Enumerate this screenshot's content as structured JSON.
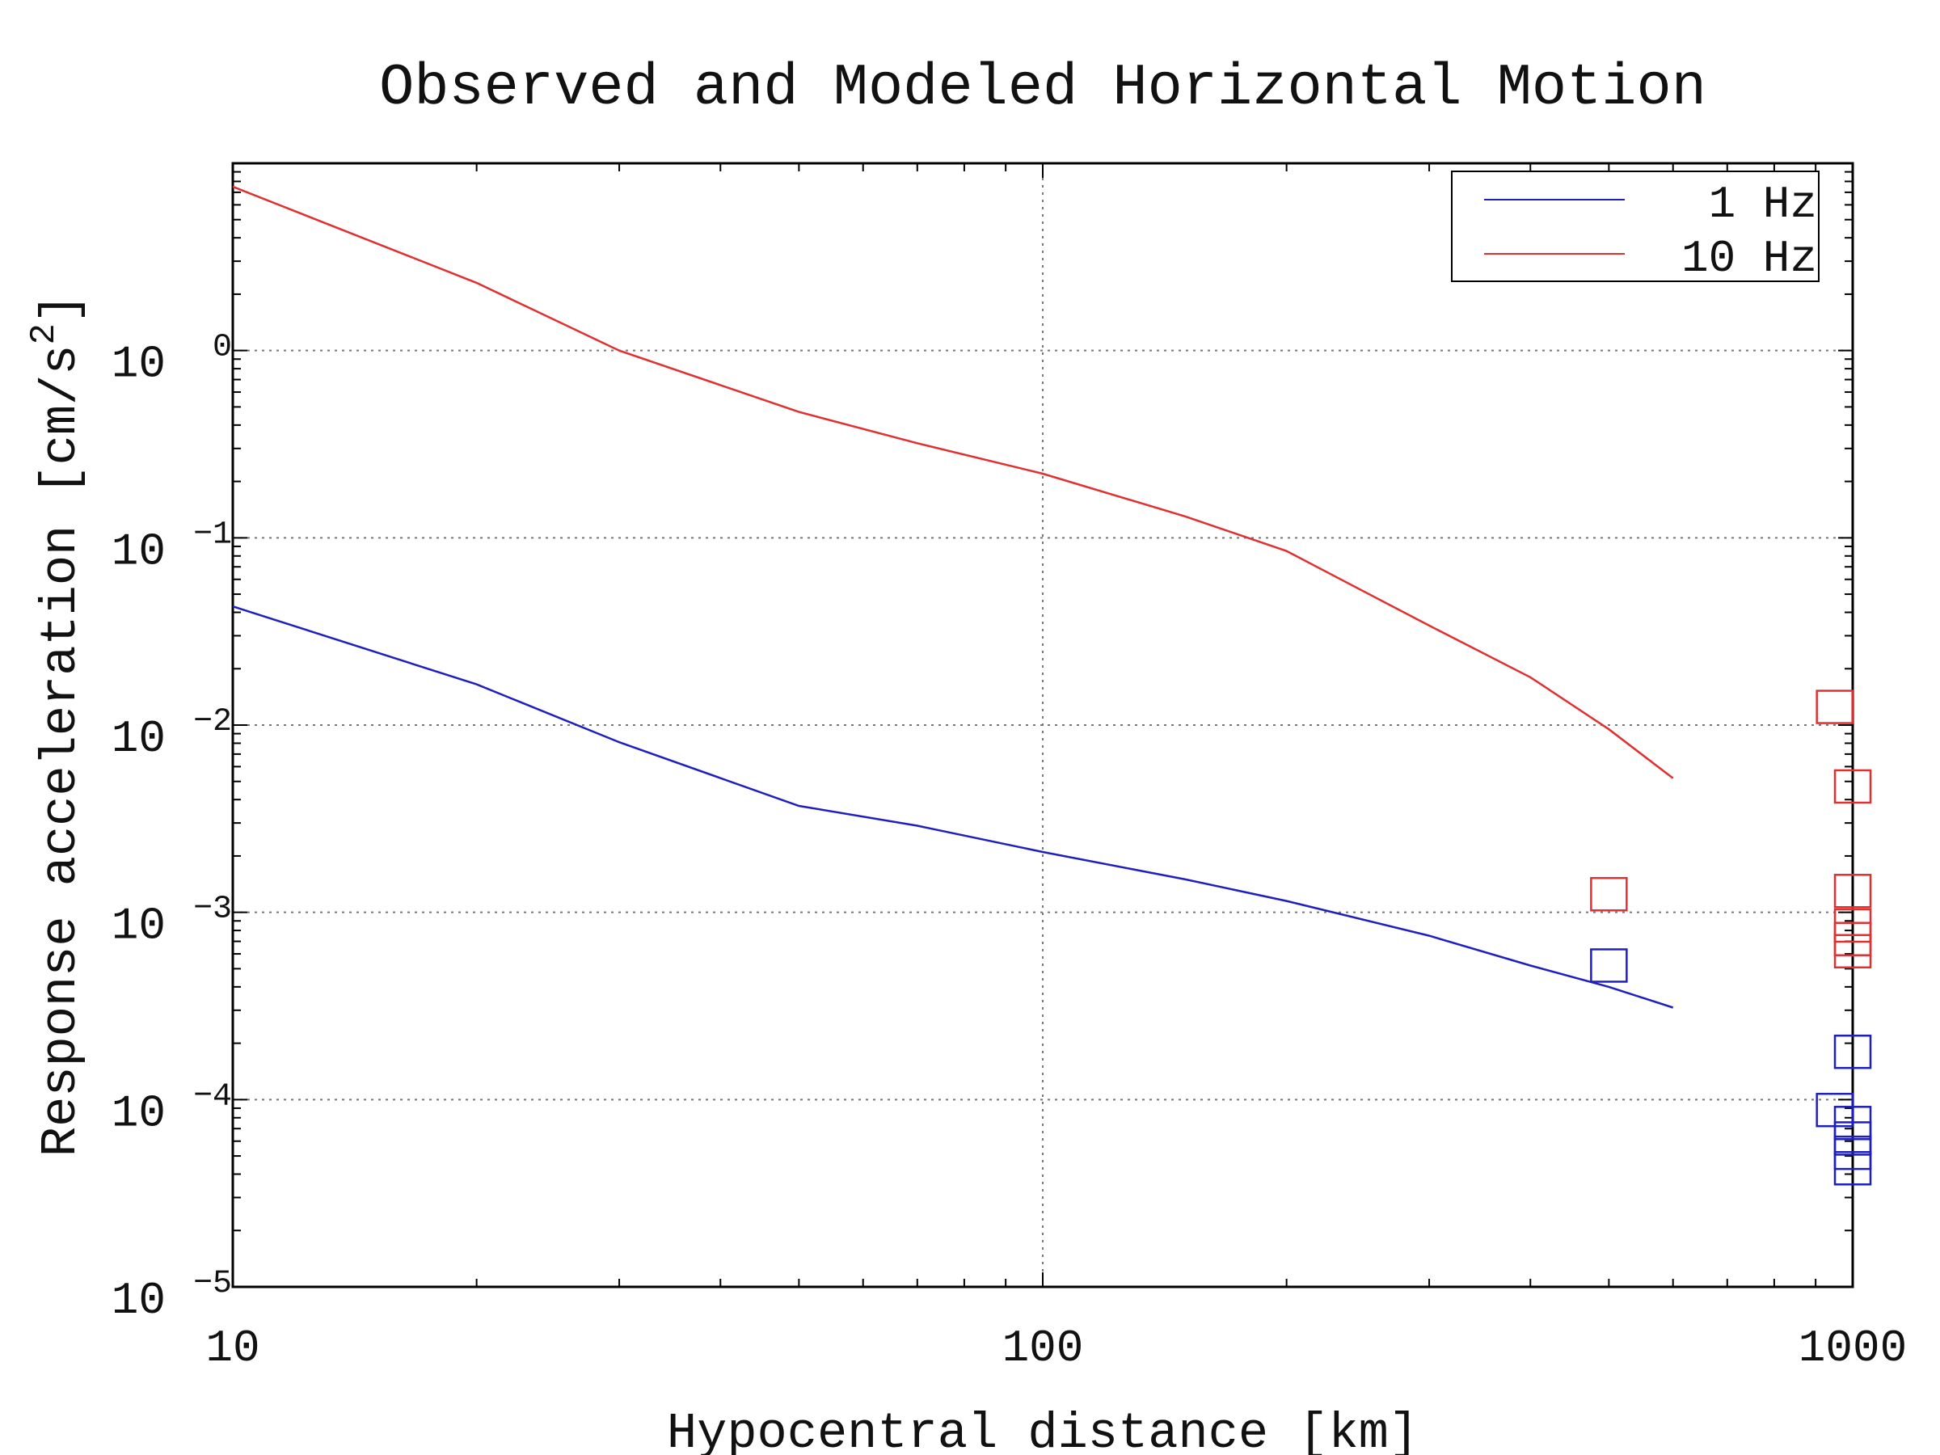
{
  "chart_data": {
    "type": "line",
    "title": "Observed and Modeled Horizontal Motion",
    "xlabel": "Hypocentral distance [km]",
    "ylabel": "Response acceleration [cm/s",
    "ylabel_sup": "2",
    "ylabel_close": "]",
    "x_scale": "log",
    "y_scale": "log",
    "xlim": [
      10,
      1000
    ],
    "ylim": [
      1e-05,
      10
    ],
    "grid": true,
    "legend_position": "top-right",
    "x_ticks": [
      {
        "value": 10,
        "label": "10"
      },
      {
        "value": 100,
        "label": "100"
      },
      {
        "value": 1000,
        "label": "1000"
      }
    ],
    "y_ticks": [
      {
        "value": 1e-05,
        "base": "10",
        "exp": "−5"
      },
      {
        "value": 0.0001,
        "base": "10",
        "exp": "−4"
      },
      {
        "value": 0.001,
        "base": "10",
        "exp": "−3"
      },
      {
        "value": 0.01,
        "base": "10",
        "exp": "−2"
      },
      {
        "value": 0.1,
        "base": "10",
        "exp": "−1"
      },
      {
        "value": 1,
        "base": "10",
        "exp": "0"
      }
    ],
    "series": [
      {
        "name": "1 Hz",
        "color": "#1f1fbf",
        "model": {
          "x": [
            10,
            20,
            30,
            50,
            70,
            100,
            150,
            200,
            300,
            400,
            500,
            600
          ],
          "y": [
            0.043,
            0.0165,
            0.0081,
            0.0037,
            0.0029,
            0.0021,
            0.0015,
            0.00115,
            0.00075,
            0.00052,
            0.0004,
            0.00031
          ]
        },
        "observed": {
          "x": [
            500,
            950,
            1000,
            1000,
            1000,
            1000,
            1000
          ],
          "y": [
            0.00052,
            8.8e-05,
            0.00018,
            7.5e-05,
            6.2e-05,
            5.2e-05,
            4.3e-05
          ]
        }
      },
      {
        "name": "10 Hz",
        "color": "#e03030",
        "model": {
          "x": [
            10,
            20,
            30,
            50,
            70,
            100,
            150,
            200,
            300,
            400,
            500,
            600
          ],
          "y": [
            7.5,
            2.3,
            1.0,
            0.47,
            0.32,
            0.22,
            0.13,
            0.085,
            0.034,
            0.018,
            0.0095,
            0.0052
          ]
        },
        "observed": {
          "x": [
            500,
            950,
            1000,
            1000,
            1000,
            1000,
            1000
          ],
          "y": [
            0.00125,
            0.0125,
            0.0047,
            0.0013,
            0.00085,
            0.00072,
            0.00062
          ]
        }
      }
    ]
  }
}
